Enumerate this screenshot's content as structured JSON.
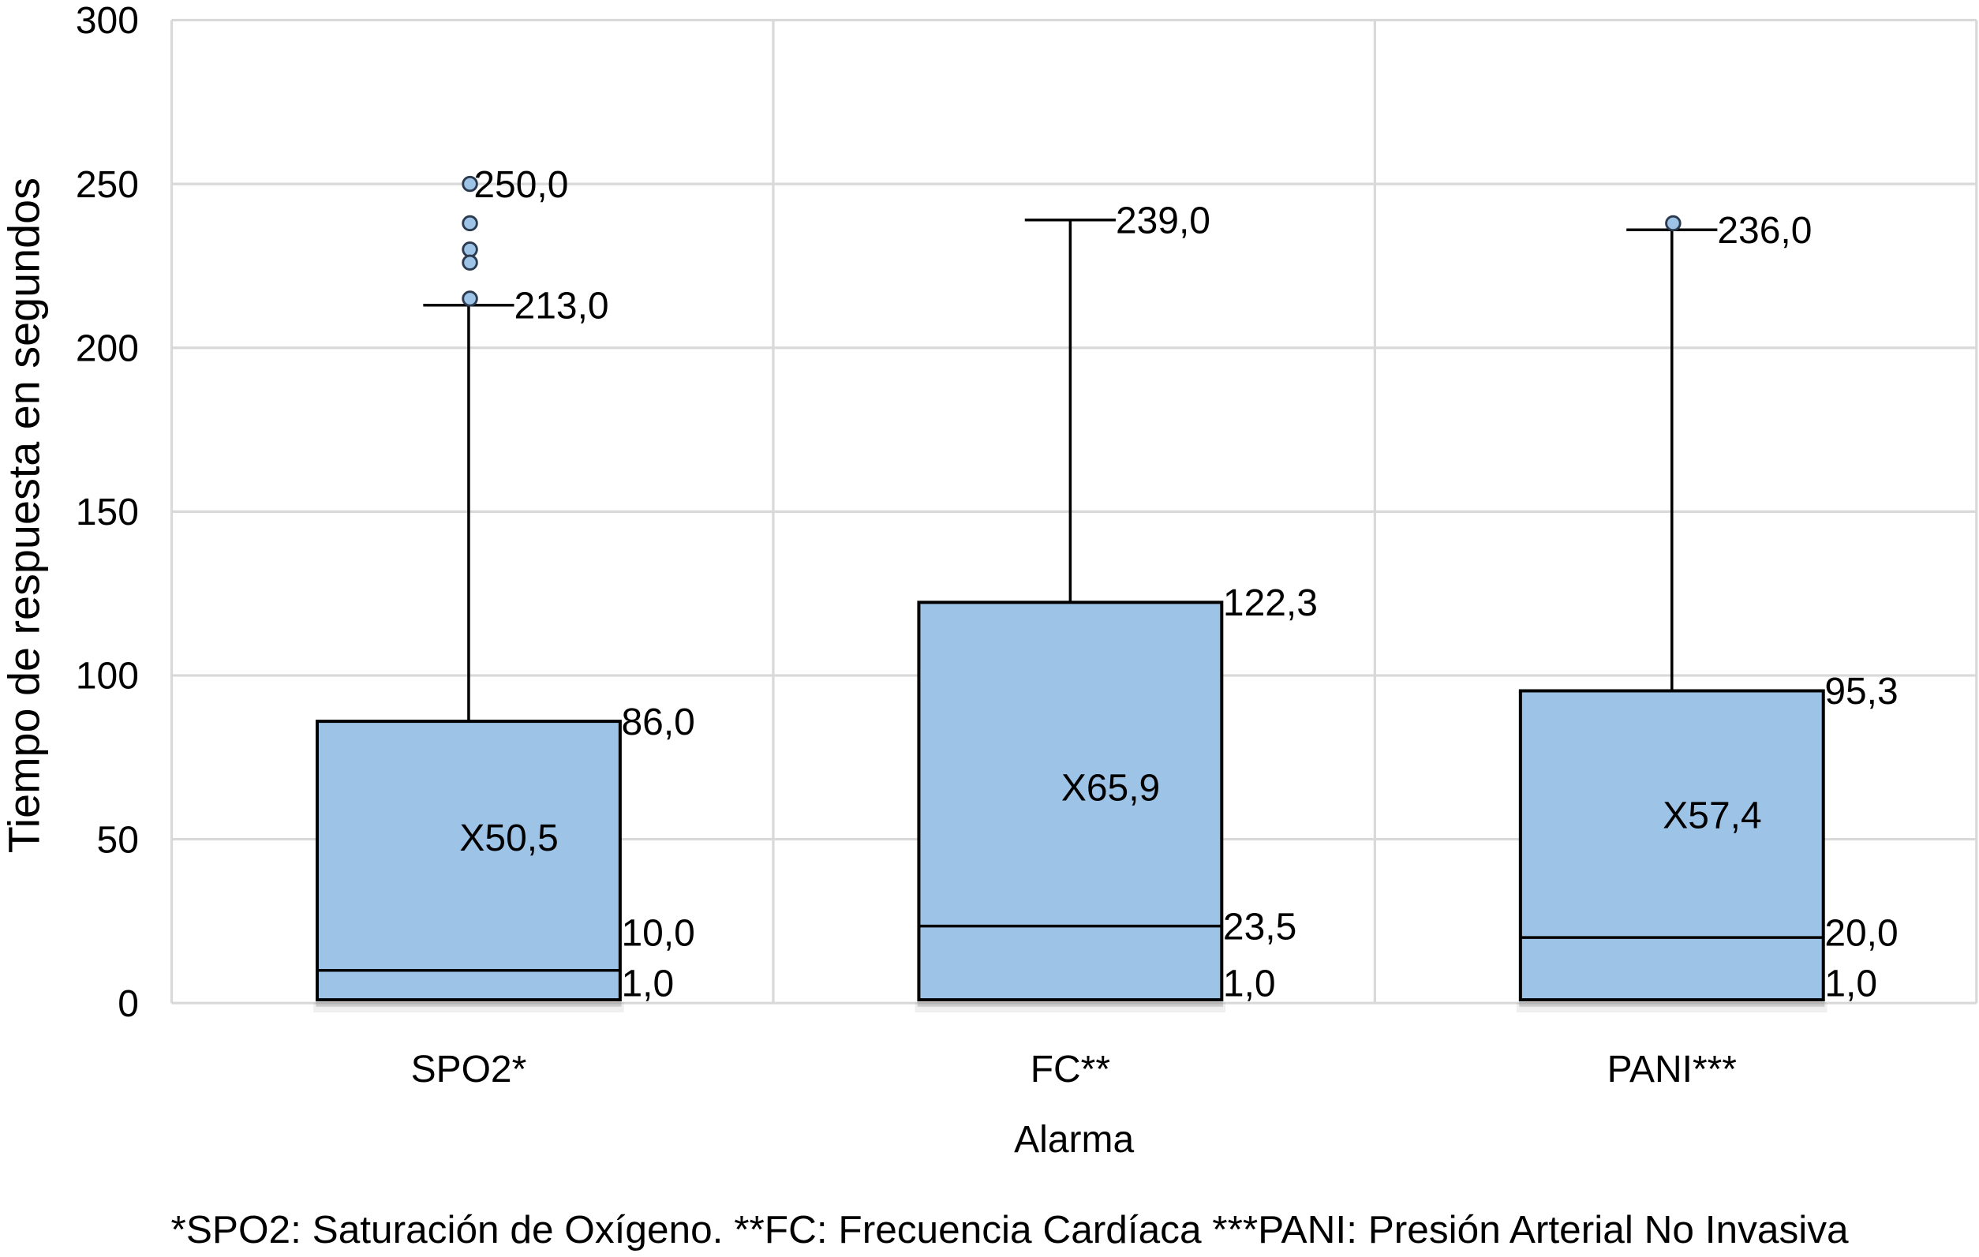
{
  "chart_data": {
    "type": "box",
    "xlabel": "Alarma",
    "ylabel": "Tiempo de respuesta en segundos",
    "ylim": [
      0,
      300
    ],
    "y_ticks": [
      0,
      50,
      100,
      150,
      200,
      250,
      300
    ],
    "grid": true,
    "categories": [
      "SPO2*",
      "FC**",
      "PANI***"
    ],
    "boxes": [
      {
        "min": 1.0,
        "q1": 1.0,
        "median": 10.0,
        "q3": 86.0,
        "mean": 50.5,
        "whisker_max": 213.0,
        "outliers": [
          250.0,
          238,
          230,
          226,
          215
        ],
        "labels": {
          "outlier_top": "250,0",
          "whisker_max": "213,0",
          "q3": "86,0",
          "mean": "X50,5",
          "median": "10,0",
          "q1": "1,0"
        }
      },
      {
        "min": 1.0,
        "q1": 1.0,
        "median": 23.5,
        "q3": 122.3,
        "mean": 65.9,
        "whisker_max": 239.0,
        "outliers": [],
        "labels": {
          "whisker_max": "239,0",
          "q3": "122,3",
          "mean": "X65,9",
          "median": "23,5",
          "q1": "1,0"
        }
      },
      {
        "min": 1.0,
        "q1": 1.0,
        "median": 20.0,
        "q3": 95.3,
        "mean": 57.4,
        "whisker_max": 236.0,
        "outliers": [
          238
        ],
        "labels": {
          "whisker_max": "236,0",
          "q3": "95,3",
          "mean": "X57,4",
          "median": "20,0",
          "q1": "1,0"
        }
      }
    ],
    "note": "*SPO2: Saturación de Oxígeno. **FC: Frecuencia Cardíaca ***PANI: Presión Arterial No Invasiva"
  },
  "colors": {
    "box_fill": "#9DC3E6",
    "line": "#000000",
    "outlier_fill": "#9DC3E6",
    "outlier_stroke": "#2B3A4F",
    "grid": "#D9D9D9",
    "shadow": "#7F7F7F",
    "text": "#000000"
  }
}
